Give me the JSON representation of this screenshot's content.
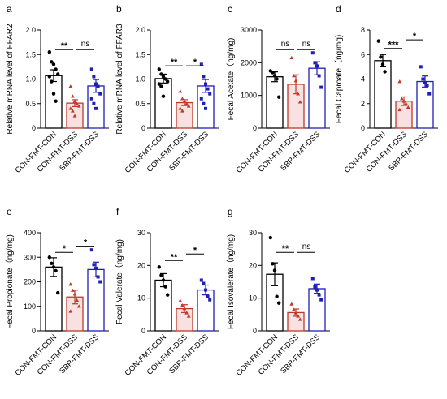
{
  "colors": {
    "CON-FMT-CON": "#000000",
    "CON-FMT-DSS": "#c0392b",
    "SBP-FMT-DSS": "#1f1fb4",
    "dss_fill": "#f7e1e1"
  },
  "chart_data": [
    {
      "letter": "a",
      "type": "bar",
      "ylabel": "Relative mRNA level of FFAR2",
      "categories": [
        "CON-FMT-CON",
        "CON-FMT-DSS",
        "SBP-FMT-DSS"
      ],
      "ylim": [
        0,
        2.0
      ],
      "yticks": [
        0,
        0.5,
        1.0,
        1.5,
        2.0
      ],
      "ytick_labels": [
        "0",
        "0.5",
        "1.0",
        "1.5",
        "2.0"
      ],
      "values": [
        1.07,
        0.51,
        0.86
      ],
      "errors": [
        0.12,
        0.07,
        0.13
      ],
      "points": [
        [
          1.55,
          1.35,
          1.3,
          1.2,
          1.1,
          1.05,
          0.95,
          0.7,
          0.55
        ],
        [
          0.85,
          0.65,
          0.55,
          0.5,
          0.45,
          0.4,
          0.35,
          0.25
        ],
        [
          1.2,
          1.05,
          0.9,
          0.85,
          0.7,
          0.6,
          0.5,
          0.4
        ]
      ],
      "brackets": [
        {
          "from": 0,
          "to": 1,
          "label": "**",
          "y": 1.6
        },
        {
          "from": 1,
          "to": 2,
          "label": "ns",
          "y": 1.6
        }
      ]
    },
    {
      "letter": "b",
      "type": "bar",
      "ylabel": "Relative mRNA level of FFAR3",
      "categories": [
        "CON-FMT-CON",
        "CON-FMT-DSS",
        "SBP-FMT-DSS"
      ],
      "ylim": [
        0,
        2.0
      ],
      "yticks": [
        0,
        0.5,
        1.0,
        1.5,
        2.0
      ],
      "ytick_labels": [
        "0",
        "0.5",
        "1.0",
        "1.5",
        "2.0"
      ],
      "values": [
        1.01,
        0.52,
        0.86
      ],
      "errors": [
        0.09,
        0.06,
        0.13
      ],
      "points": [
        [
          1.2,
          1.1,
          1.05,
          1.0,
          0.95,
          0.9,
          0.85,
          0.65
        ],
        [
          0.75,
          0.6,
          0.55,
          0.5,
          0.45,
          0.4,
          0.35
        ],
        [
          1.3,
          1.05,
          0.9,
          0.8,
          0.7,
          0.6,
          0.5,
          0.4
        ]
      ],
      "brackets": [
        {
          "from": 0,
          "to": 1,
          "label": "**",
          "y": 1.27
        },
        {
          "from": 1,
          "to": 2,
          "label": "*",
          "y": 1.27
        }
      ]
    },
    {
      "letter": "c",
      "type": "bar",
      "ylabel": "Fecal Acetate（ng/mg)",
      "categories": [
        "CON-FMT-CON",
        "CON-FMT-DSS",
        "SBP-FMT-DSS"
      ],
      "ylim": [
        0,
        3000
      ],
      "yticks": [
        0,
        1000,
        2000,
        3000
      ],
      "ytick_labels": [
        "0",
        "1000",
        "2000",
        "3000"
      ],
      "values": [
        1570,
        1340,
        1830
      ],
      "errors": [
        150,
        290,
        200
      ],
      "points": [
        [
          1750,
          1700,
          1600,
          1500,
          950
        ],
        [
          2150,
          1600,
          1450,
          1050,
          800
        ],
        [
          2300,
          2000,
          1900,
          1600,
          1250
        ]
      ],
      "brackets": [
        {
          "from": 0,
          "to": 1,
          "label": "ns",
          "y": 2400
        },
        {
          "from": 1,
          "to": 2,
          "label": "ns",
          "y": 2400
        }
      ]
    },
    {
      "letter": "d",
      "type": "bar",
      "ylabel": "Fecal Caproate（ng/mg)",
      "categories": [
        "CON-FMT-CON",
        "CON-FMT-DSS",
        "SBP-FMT-DSS"
      ],
      "ylim": [
        0,
        8
      ],
      "yticks": [
        0,
        2,
        4,
        6,
        8
      ],
      "ytick_labels": [
        "0",
        "2",
        "4",
        "6",
        "8"
      ],
      "values": [
        5.5,
        2.2,
        3.8
      ],
      "errors": [
        0.5,
        0.35,
        0.45
      ],
      "points": [
        [
          7.1,
          5.8,
          5.2,
          4.6
        ],
        [
          3.8,
          2.4,
          2.2,
          2.0,
          1.7,
          1.5
        ],
        [
          5.0,
          4.0,
          3.7,
          3.5,
          2.8
        ]
      ],
      "brackets": [
        {
          "from": 0,
          "to": 1,
          "label": "***",
          "y": 6.5
        },
        {
          "from": 1,
          "to": 2,
          "label": "*",
          "y": 7.2
        }
      ]
    },
    {
      "letter": "e",
      "type": "bar",
      "ylabel": "Fecal Propionate（ng/mg)",
      "categories": [
        "CON-FMT-CON",
        "CON-FMT-DSS",
        "SBP-FMT-DSS"
      ],
      "ylim": [
        0,
        400
      ],
      "yticks": [
        0,
        100,
        200,
        300,
        400
      ],
      "ytick_labels": [
        "0",
        "100",
        "200",
        "300",
        "400"
      ],
      "values": [
        260,
        138,
        250
      ],
      "errors": [
        38,
        28,
        30
      ],
      "points": [
        [
          300,
          275,
          260,
          245,
          155
        ],
        [
          190,
          165,
          150,
          125,
          100,
          80
        ],
        [
          330,
          270,
          255,
          220,
          200
        ]
      ],
      "brackets": [
        {
          "from": 0,
          "to": 1,
          "label": "*",
          "y": 320
        },
        {
          "from": 1,
          "to": 2,
          "label": "*",
          "y": 345
        }
      ]
    },
    {
      "letter": "f",
      "type": "bar",
      "ylabel": "Fecal Valerate（ng/mg)",
      "categories": [
        "CON-FMT-CON",
        "CON-FMT-DSS",
        "SBP-FMT-DSS"
      ],
      "ylim": [
        0,
        30
      ],
      "yticks": [
        0,
        10,
        20,
        30
      ],
      "ytick_labels": [
        "0",
        "10",
        "20",
        "30"
      ],
      "values": [
        15.5,
        6.8,
        12.5
      ],
      "errors": [
        2.0,
        1.2,
        1.5
      ],
      "points": [
        [
          19.5,
          17.0,
          15.5,
          13.5,
          11.0
        ],
        [
          9.2,
          7.8,
          6.8,
          5.5,
          4.5
        ],
        [
          15.5,
          14.5,
          12.5,
          10.5,
          9.5
        ]
      ],
      "brackets": [
        {
          "from": 0,
          "to": 1,
          "label": "**",
          "y": 21.5
        },
        {
          "from": 1,
          "to": 2,
          "label": "*",
          "y": 23.5
        }
      ]
    },
    {
      "letter": "g",
      "type": "bar",
      "ylabel": "Fecal Isovalerate（ng/mg)",
      "categories": [
        "CON-FMT-CON",
        "CON-FMT-DSS",
        "SBP-FMT-DSS"
      ],
      "ylim": [
        0,
        30
      ],
      "yticks": [
        0,
        10,
        20,
        30
      ],
      "ytick_labels": [
        "0",
        "10",
        "20",
        "30"
      ],
      "values": [
        17.3,
        5.6,
        12.9
      ],
      "errors": [
        3.5,
        1.1,
        1.4
      ],
      "points": [
        [
          28.5,
          20.5,
          18.5,
          10.5,
          8.5
        ],
        [
          8.2,
          6.5,
          5.5,
          4.5,
          3.5
        ],
        [
          16.0,
          13.5,
          12.5,
          11.0,
          9.5
        ]
      ],
      "brackets": [
        {
          "from": 0,
          "to": 1,
          "label": "**",
          "y": 24
        },
        {
          "from": 1,
          "to": 2,
          "label": "ns",
          "y": 24
        }
      ]
    }
  ]
}
